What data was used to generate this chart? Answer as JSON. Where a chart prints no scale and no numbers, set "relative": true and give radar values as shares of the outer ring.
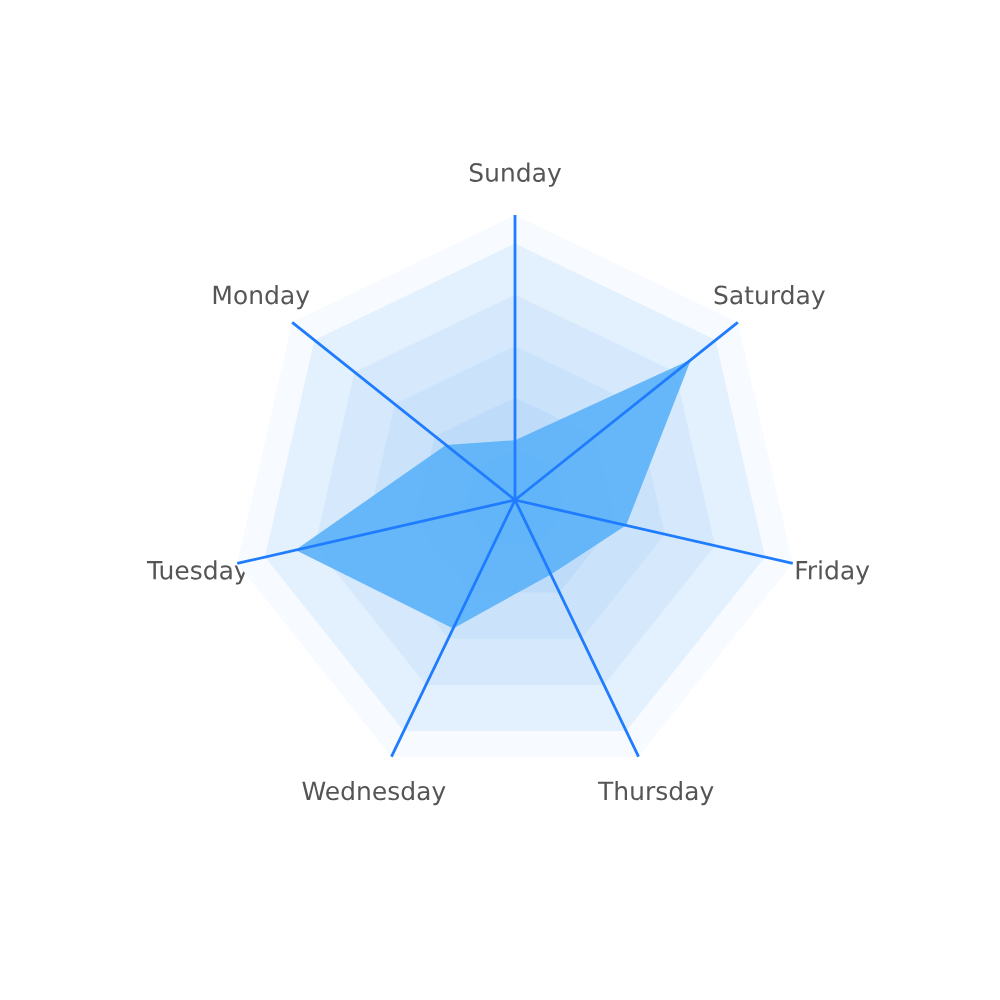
{
  "chart_data": {
    "type": "radar",
    "relative": true,
    "categories": [
      "Sunday",
      "Saturday",
      "Friday",
      "Thursday",
      "Wednesday",
      "Tuesday",
      "Monday"
    ],
    "series": [
      {
        "color": "#5ab1f8",
        "values": [
          0.21,
          0.79,
          0.4,
          0.29,
          0.5,
          0.79,
          0.31
        ]
      }
    ]
  }
}
